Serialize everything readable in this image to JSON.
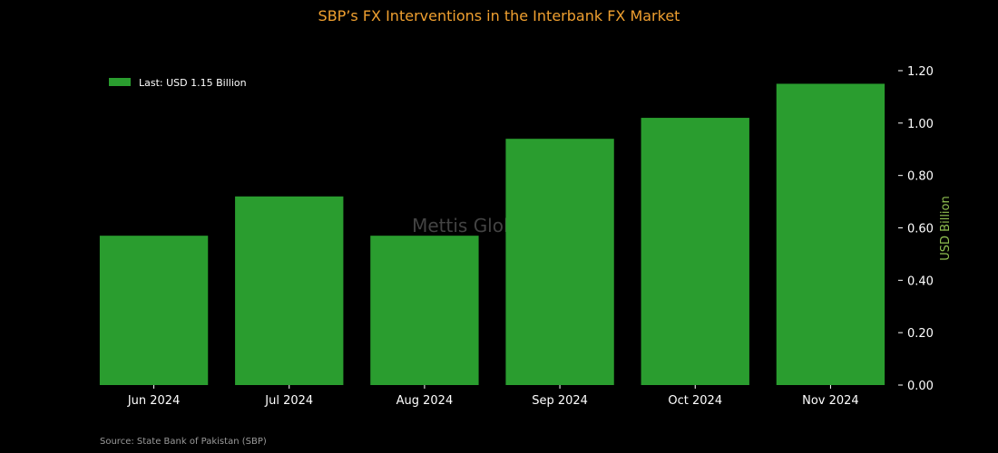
{
  "chart_data": {
    "type": "bar",
    "title": "SBP’s FX Interventions in the Interbank FX Market",
    "categories": [
      "Jun 2024",
      "Jul 2024",
      "Aug 2024",
      "Sep 2024",
      "Oct 2024",
      "Nov 2024"
    ],
    "series": [
      {
        "name": "Last: USD 1.15 Billion",
        "values": [
          0.57,
          0.72,
          0.57,
          0.94,
          1.02,
          1.15
        ]
      }
    ],
    "xlabel": "",
    "ylabel": "USD Billion",
    "ylim": [
      0,
      1.2
    ],
    "yticks": [
      "0.00",
      "0.20",
      "0.40",
      "0.60",
      "0.80",
      "1.00",
      "1.20"
    ],
    "y_axis_side": "right",
    "legend_position": "top-left",
    "grid": false,
    "colors": {
      "background": "#000000",
      "bar": "#2a9d2f",
      "title": "#f0a030",
      "ylabel": "#8fbf50",
      "axis": "#ffffff"
    }
  },
  "watermark": "Mettis Global News",
  "source": "Source: State Bank of Pakistan (SBP)"
}
